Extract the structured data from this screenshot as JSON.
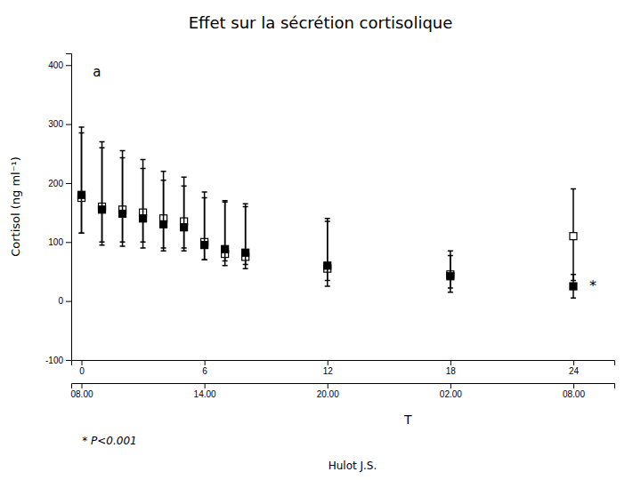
{
  "chart_data": {
    "type": "scatter",
    "title": "Effet sur la sécrétion cortisolique",
    "xlabel": "T",
    "ylabel": "Cortisol (ng ml⁻¹)",
    "panel_label": "a",
    "footnote": "* P<0.001",
    "credit": "Hulot J.S.",
    "annotations": [
      {
        "text": "*",
        "x": 24.7,
        "y": 25
      }
    ],
    "xlim": [
      -0.5,
      26
    ],
    "xticks": [
      0,
      6,
      12,
      18,
      24
    ],
    "x2lim": [
      -0.5,
      26
    ],
    "x2ticks": [
      {
        "value": 0,
        "label": "08.00"
      },
      {
        "value": 6,
        "label": "14.00"
      },
      {
        "value": 12,
        "label": "20.00"
      },
      {
        "value": 18,
        "label": "02.00"
      },
      {
        "value": 24,
        "label": "08.00"
      }
    ],
    "ylim": [
      -100,
      420
    ],
    "yticks": [
      -100,
      0,
      100,
      200,
      300,
      400
    ],
    "grid": false,
    "series": [
      {
        "marker": "open-square",
        "color": "#000000",
        "x": [
          0,
          1,
          2,
          3,
          4,
          5,
          6,
          7,
          8,
          12,
          18,
          24
        ],
        "values": [
          175,
          160,
          155,
          150,
          140,
          135,
          100,
          80,
          75,
          55,
          45,
          110
        ],
        "error_lo": [
          60,
          60,
          55,
          50,
          50,
          45,
          30,
          20,
          20,
          30,
          30,
          75
        ],
        "error_hi": [
          110,
          110,
          100,
          90,
          80,
          75,
          85,
          90,
          90,
          85,
          40,
          80
        ]
      },
      {
        "marker": "filled-square",
        "color": "#000000",
        "x": [
          0,
          1,
          2,
          3,
          4,
          5,
          6,
          7,
          8,
          12,
          18,
          24
        ],
        "values": [
          180,
          155,
          148,
          140,
          130,
          125,
          95,
          88,
          82,
          60,
          42,
          25
        ],
        "error_lo": [
          65,
          60,
          55,
          50,
          45,
          40,
          25,
          20,
          20,
          25,
          20,
          20
        ],
        "error_hi": [
          115,
          105,
          95,
          85,
          75,
          70,
          80,
          80,
          78,
          75,
          35,
          20
        ]
      }
    ]
  }
}
